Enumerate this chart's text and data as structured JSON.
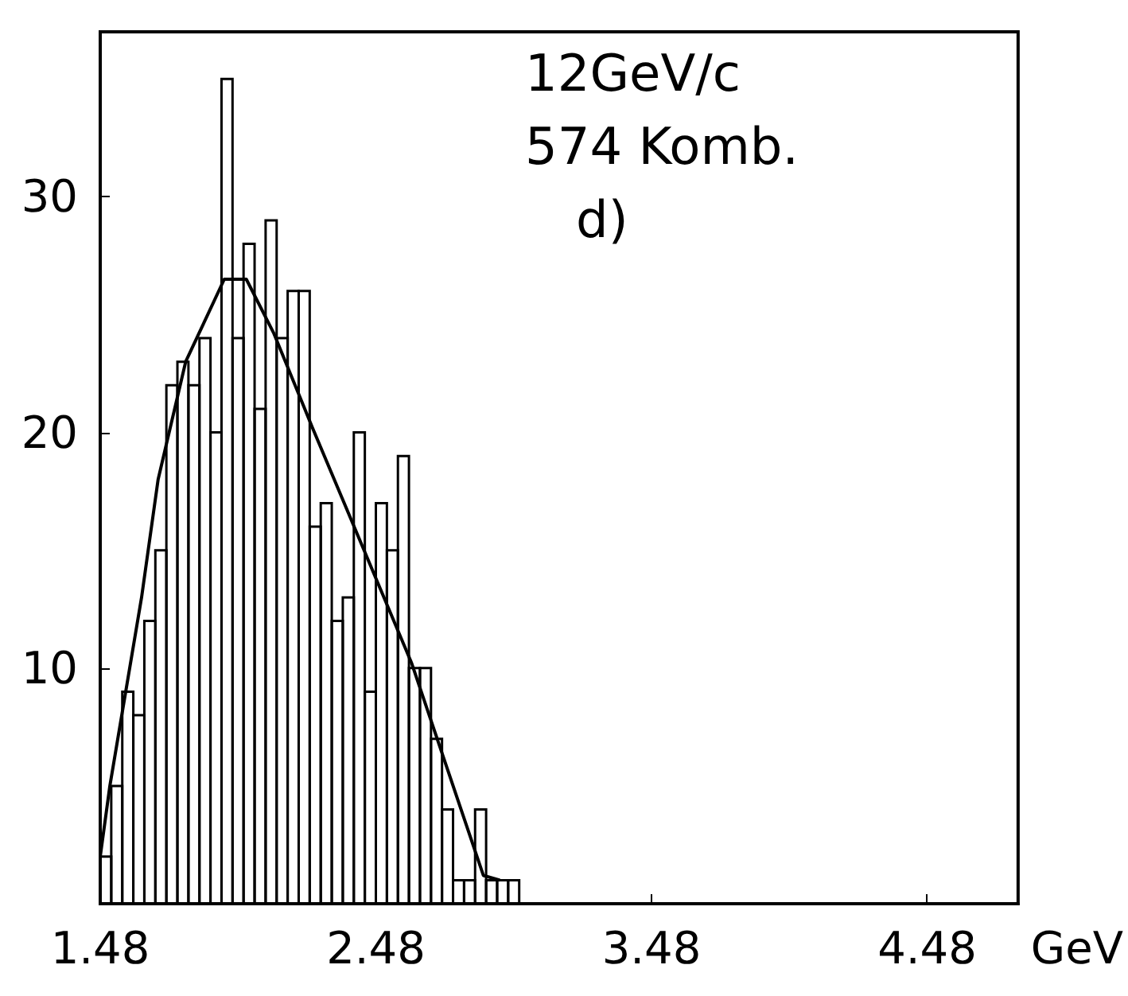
{
  "chart_data": {
    "type": "histogram",
    "xlabel": "GeV",
    "annotations": [
      "12GeV/c",
      "574 Komb.",
      "d)"
    ],
    "xlim": [
      1.48,
      4.81
    ],
    "xticks": [
      1.48,
      2.48,
      3.48,
      4.48
    ],
    "ylim": [
      0,
      37
    ],
    "yticks": [
      10,
      20,
      30
    ],
    "grid": false,
    "series": [
      {
        "color": "#000000",
        "bins": [
          1.48,
          1.52,
          1.56,
          1.6,
          1.64,
          1.68,
          1.72,
          1.76,
          1.8,
          1.84,
          1.88,
          1.92,
          1.96,
          2.0,
          2.04,
          2.08,
          2.12,
          2.16,
          2.2,
          2.24,
          2.28,
          2.32,
          2.36,
          2.4,
          2.44,
          2.48,
          2.52,
          2.56,
          2.6,
          2.64,
          2.68,
          2.72,
          2.76,
          2.8,
          2.84,
          2.88,
          2.92,
          2.96,
          3.0
        ],
        "values": [
          2,
          5,
          9,
          8,
          12,
          15,
          22,
          23,
          22,
          24,
          20,
          35,
          24,
          28,
          21,
          29,
          24,
          26,
          26,
          16,
          17,
          12,
          13,
          20,
          9,
          17,
          15,
          19,
          10,
          10,
          7,
          4,
          1,
          1,
          4,
          1,
          1,
          1
        ]
      },
      {
        "type": "line",
        "color": "#000000",
        "marker": "none",
        "line_style": "solid",
        "x": [
          1.48,
          1.515,
          1.63,
          1.69,
          1.79,
          1.93,
          2.01,
          2.11,
          2.25,
          2.61,
          2.87,
          2.93
        ],
        "values": [
          2,
          5,
          13,
          18,
          23,
          26.5,
          26.5,
          24.2,
          20.2,
          10.2,
          1.2,
          1
        ]
      }
    ]
  }
}
